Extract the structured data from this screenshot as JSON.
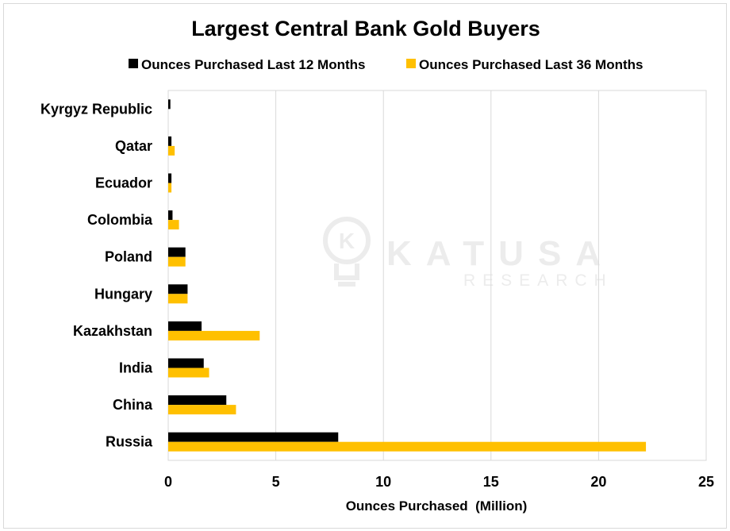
{
  "chart_data": {
    "type": "bar",
    "orientation": "horizontal",
    "title": "Largest Central Bank Gold Buyers",
    "xlabel": "Ounces Purchased  (Million)",
    "ylabel": "",
    "xlim": [
      0,
      25
    ],
    "xticks": [
      "0",
      "5",
      "10",
      "15",
      "20",
      "25"
    ],
    "grid": "vertical",
    "legend_position": "top",
    "categories": [
      "Kyrgyz Republic",
      "Qatar",
      "Ecuador",
      "Colombia",
      "Poland",
      "Hungary",
      "Kazakhstan",
      "India",
      "China",
      "Russia"
    ],
    "series": [
      {
        "name": "Ounces Purchased Last 12 Months",
        "color": "#000000",
        "values": [
          0.1,
          0.15,
          0.15,
          0.2,
          0.8,
          0.9,
          1.55,
          1.65,
          2.7,
          7.9
        ]
      },
      {
        "name": "Ounces Purchased Last 36 Months",
        "color": "#ffc000",
        "values": [
          0.0,
          0.3,
          0.15,
          0.5,
          0.8,
          0.9,
          4.25,
          1.9,
          3.15,
          22.2
        ]
      }
    ]
  },
  "watermark": {
    "brand": "KATUSA",
    "subtitle": "RESEARCH",
    "logo_letter": "K",
    "icon": "lightbulb-icon"
  }
}
